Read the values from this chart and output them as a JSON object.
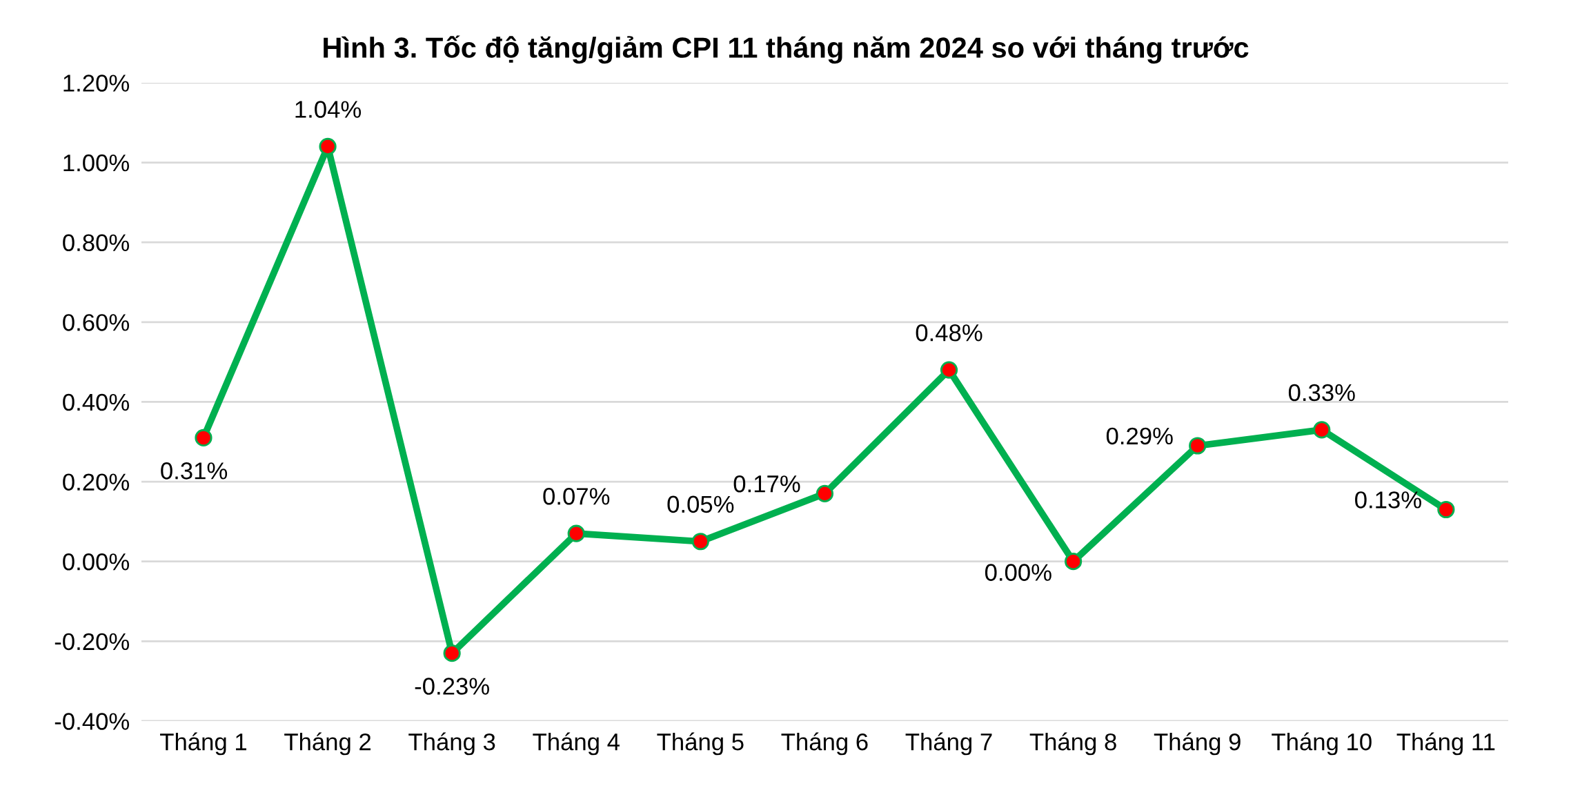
{
  "chart_data": {
    "type": "line",
    "title": "Hình 3. Tốc độ tăng/giảm CPI 11 tháng năm 2024 so với tháng trước",
    "categories": [
      "Tháng 1",
      "Tháng 2",
      "Tháng 3",
      "Tháng 4",
      "Tháng 5",
      "Tháng 6",
      "Tháng 7",
      "Tháng 8",
      "Tháng 9",
      "Tháng 10",
      "Tháng 11"
    ],
    "series": [
      {
        "color": "#00b050",
        "colors": [
          "#ff0000",
          "#ff0000",
          "#ff0000",
          "#ff0000",
          "#ff0000",
          "#ff0000",
          "#ff0000",
          "#ff0000",
          "#ff0000",
          "#ff0000",
          "#ff0000"
        ],
        "values": [
          0.31,
          1.04,
          -0.23,
          0.07,
          0.05,
          0.17,
          0.48,
          0.0,
          0.29,
          0.33,
          0.13
        ],
        "value_labels": [
          "0.31%",
          "1.04%",
          "-0.23%",
          "0.07%",
          "0.05%",
          "0.17%",
          "0.48%",
          "0.00%",
          "0.29%",
          "0.33%",
          "0.13%"
        ]
      }
    ],
    "ylim": [
      -0.4,
      1.2
    ],
    "yticks": [
      {
        "value": -0.4,
        "label": "-0.40%"
      },
      {
        "value": -0.2,
        "label": "-0.20%"
      },
      {
        "value": 0,
        "label": "0.00%"
      },
      {
        "value": 0.2,
        "label": "0.20%"
      },
      {
        "value": 0.4,
        "label": "0.40%"
      },
      {
        "value": 0.6,
        "label": "0.60%"
      },
      {
        "value": 0.8,
        "label": "0.80%"
      },
      {
        "value": 1.0,
        "label": "1.00%"
      },
      {
        "value": 1.2,
        "label": "1.20%"
      }
    ],
    "grid": "y",
    "marker": "circle",
    "line_style": "solid",
    "legend": false
  }
}
